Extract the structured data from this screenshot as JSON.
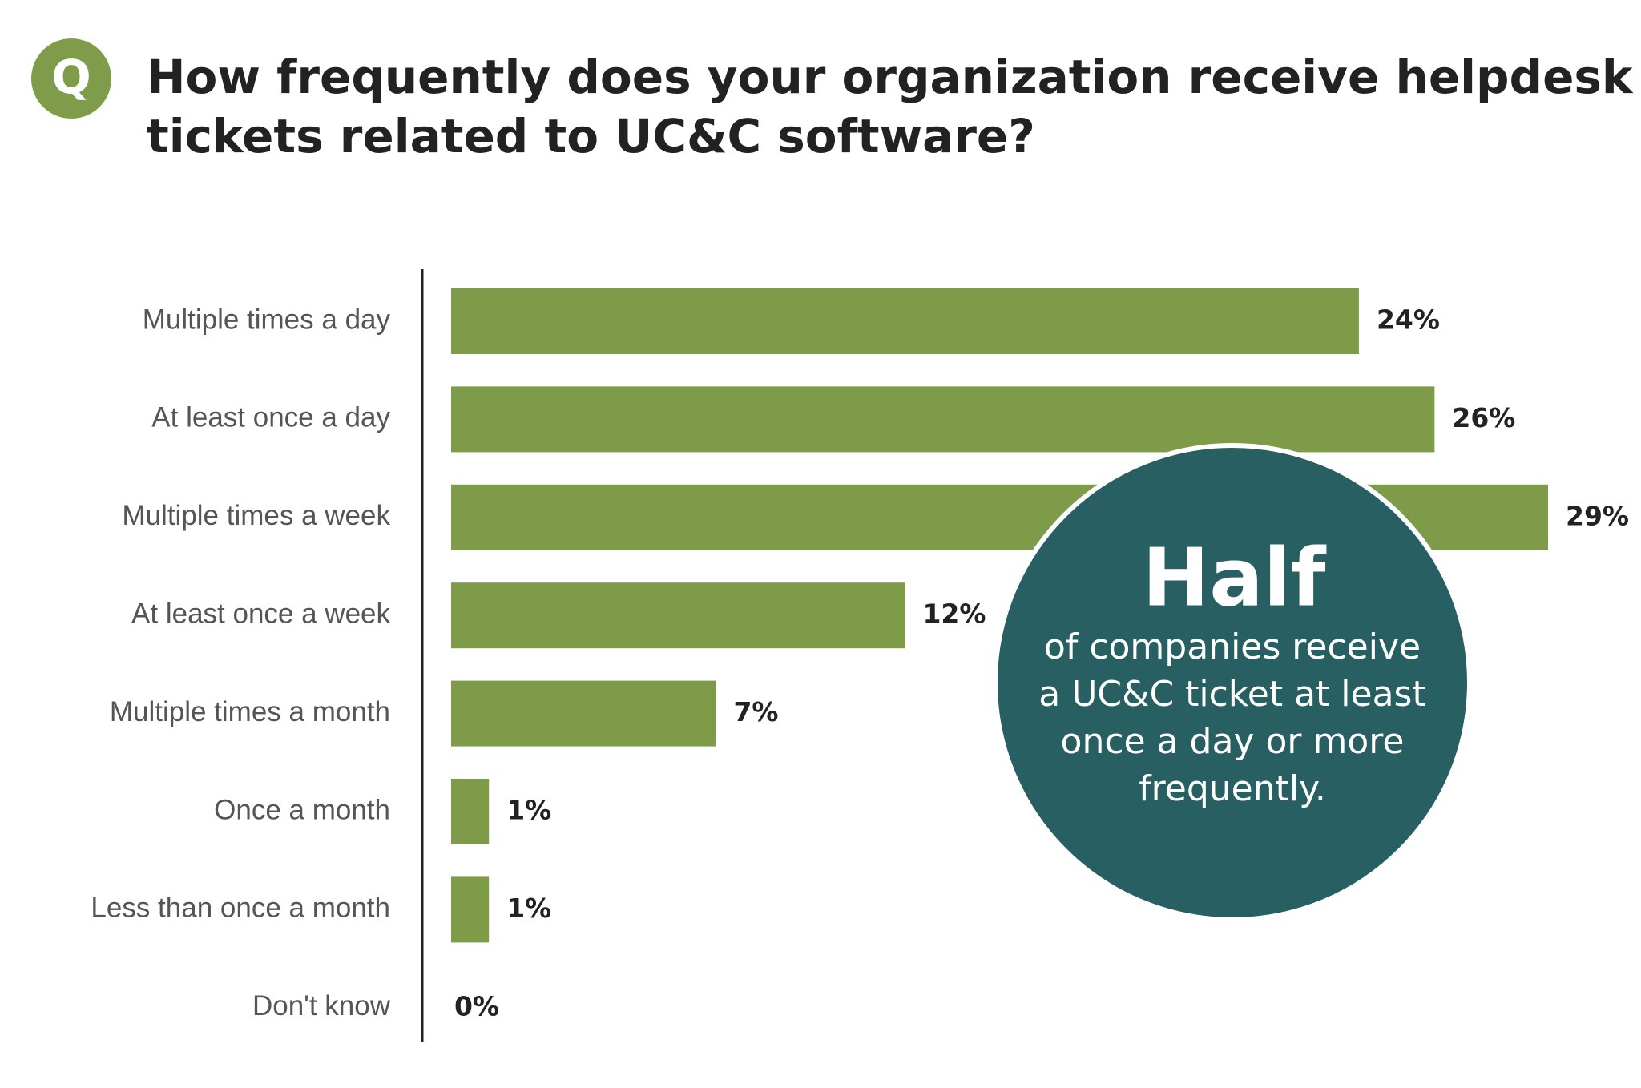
{
  "chart_data": {
    "type": "hbar",
    "badge": "Q",
    "title_lines": [
      "How frequently does your organization receive helpdesk",
      "tickets related to UC&C software?"
    ],
    "categories": [
      "Multiple times a day",
      "At least once a day",
      "Multiple times a week",
      "At least once a week",
      "Multiple times a month",
      "Once a month",
      "Less than once a month",
      "Don't know"
    ],
    "values": [
      24,
      26,
      29,
      12,
      7,
      1,
      1,
      0
    ],
    "value_labels": [
      "24%",
      "26%",
      "29%",
      "12%",
      "7%",
      "1%",
      "1%",
      "0%"
    ],
    "color": "#7e9b4a",
    "annotation": {
      "headline": "Half",
      "lines": [
        "of companies receive",
        "a UC&C ticket at least",
        "once a day or more",
        "frequently."
      ],
      "color": "#285f63"
    }
  }
}
